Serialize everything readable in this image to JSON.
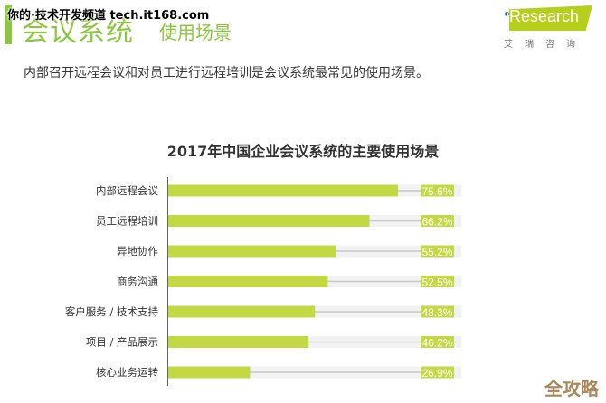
{
  "watermark_top": "你的·技术开发频道 tech.it168.com",
  "header": {
    "title": "会议系统",
    "subtitle": "使用场景"
  },
  "logo": {
    "brand": "iResearch",
    "cn": "艾瑞咨询"
  },
  "summary": "内部召开远程会议和对员工进行远程培训是会议系统最常见的使用场景。",
  "watermark_bottom": "全攻略",
  "colors": {
    "accent": "#8cc63f",
    "bar": "#c3d944",
    "track": "#f2f2f2",
    "connector": "#c8c8c8",
    "watermark": "#a8875a"
  },
  "chart_data": {
    "type": "bar",
    "orientation": "horizontal",
    "title": "2017年中国企业会议系统的主要使用场景",
    "categories": [
      "内部远程会议",
      "员工远程培训",
      "异地协作",
      "商务沟通",
      "客户服务 / 技术支持",
      "项目 / 产品展示",
      "核心业务运转"
    ],
    "values": [
      75.6,
      66.2,
      55.2,
      52.5,
      48.3,
      46.2,
      26.9
    ],
    "labels": [
      "75.6%",
      "66.2%",
      "55.2%",
      "52.5%",
      "48.3%",
      "46.2%",
      "26.9%"
    ],
    "unit": "%",
    "xlim": [
      0,
      100
    ],
    "grid": false
  }
}
